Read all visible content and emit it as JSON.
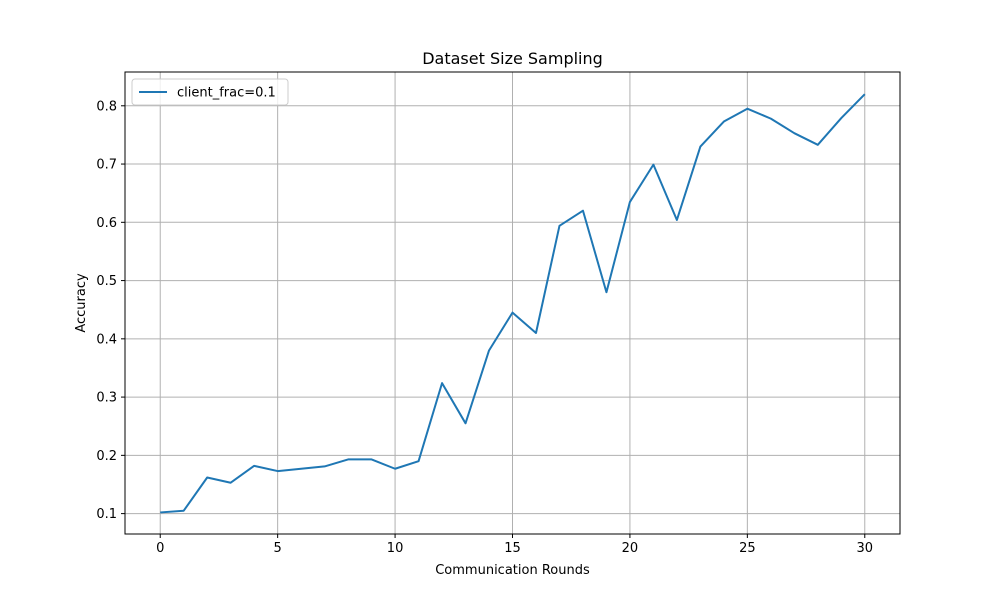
{
  "chart_data": {
    "type": "line",
    "title": "Dataset Size Sampling",
    "xlabel": "Communication Rounds",
    "ylabel": "Accuracy",
    "xlim": [
      -1.5,
      31.5
    ],
    "ylim": [
      0.065,
      0.858
    ],
    "xticks": [
      0,
      5,
      10,
      15,
      20,
      25,
      30
    ],
    "yticks": [
      0.1,
      0.2,
      0.3,
      0.4,
      0.5,
      0.6,
      0.7,
      0.8
    ],
    "grid": true,
    "legend_position": "top-left",
    "series": [
      {
        "name": "client_frac=0.1",
        "color": "#1f77b4",
        "x": [
          0,
          1,
          2,
          3,
          4,
          5,
          6,
          7,
          8,
          9,
          10,
          11,
          12,
          13,
          14,
          15,
          16,
          17,
          18,
          19,
          20,
          21,
          22,
          23,
          24,
          25,
          26,
          27,
          28,
          29,
          30
        ],
        "values": [
          0.102,
          0.105,
          0.162,
          0.153,
          0.182,
          0.173,
          0.177,
          0.181,
          0.193,
          0.193,
          0.177,
          0.19,
          0.324,
          0.255,
          0.38,
          0.445,
          0.41,
          0.594,
          0.62,
          0.48,
          0.635,
          0.699,
          0.604,
          0.73,
          0.773,
          0.795,
          0.778,
          0.753,
          0.733,
          0.779,
          0.82
        ]
      }
    ]
  }
}
